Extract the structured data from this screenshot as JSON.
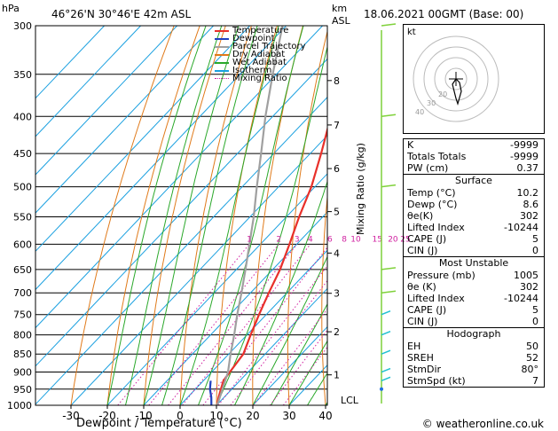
{
  "header": {
    "hpa_label": "hPa",
    "location": "46°26'N  30°46'E  42m  ASL",
    "km_label": "km",
    "asl_label": "ASL",
    "datetime": "18.06.2021  00GMT  (Base: 00)"
  },
  "legend": [
    {
      "label": "Temperature",
      "color": "#e8302a",
      "style": "solid"
    },
    {
      "label": "Dewpoint",
      "color": "#1f3fbf",
      "style": "solid"
    },
    {
      "label": "Parcel Trajectory",
      "color": "#a0a0a0",
      "style": "solid"
    },
    {
      "label": "Dry Adiabat",
      "color": "#e07a1a",
      "style": "solid"
    },
    {
      "label": "Wet Adiabat",
      "color": "#2aa82a",
      "style": "solid"
    },
    {
      "label": "Isotherm",
      "color": "#1aa0e0",
      "style": "solid"
    },
    {
      "label": "Mixing Ratio",
      "color": "#d020a0",
      "style": "dotted"
    }
  ],
  "axes": {
    "xlabel": "Dewpoint  /  Temperature  (°C)",
    "right_label": "Mixing Ratio  (g/kg)",
    "lcl_label": "LCL",
    "footer": "© weatheronline.co.uk"
  },
  "chart_data": {
    "type": "line",
    "x_ticks": [
      -30,
      -20,
      -10,
      0,
      10,
      20,
      30,
      40
    ],
    "pressure_levels": [
      300,
      350,
      400,
      450,
      500,
      550,
      600,
      650,
      700,
      750,
      800,
      850,
      900,
      950,
      1000
    ],
    "km_ticks": [
      {
        "km": 1,
        "p": 908
      },
      {
        "km": 2,
        "p": 792
      },
      {
        "km": 3,
        "p": 701
      },
      {
        "km": 4,
        "p": 617
      },
      {
        "km": 5,
        "p": 541
      },
      {
        "km": 6,
        "p": 472
      },
      {
        "km": 7,
        "p": 411
      },
      {
        "km": 8,
        "p": 357
      }
    ],
    "mixing_ratio_labels": [
      "1",
      "2",
      "3",
      "4",
      "6",
      "8",
      "10",
      "15",
      "20",
      "25"
    ],
    "series": [
      {
        "name": "Temperature",
        "color": "#e8302a",
        "points": [
          [
            1000,
            10.2
          ],
          [
            975,
            8.5
          ],
          [
            950,
            7.0
          ],
          [
            925,
            5.5
          ],
          [
            900,
            5.0
          ],
          [
            850,
            4.0
          ],
          [
            800,
            1.0
          ],
          [
            750,
            -2.0
          ],
          [
            700,
            -5.0
          ],
          [
            650,
            -8.0
          ],
          [
            600,
            -12.0
          ],
          [
            550,
            -16.5
          ],
          [
            500,
            -21.0
          ],
          [
            450,
            -27.0
          ],
          [
            400,
            -34.0
          ],
          [
            350,
            -42.0
          ],
          [
            300,
            -51.0
          ]
        ]
      },
      {
        "name": "Dewpoint",
        "color": "#1f3fbf",
        "points": [
          [
            1000,
            8.6
          ],
          [
            975,
            6.5
          ],
          [
            950,
            4.0
          ],
          [
            925,
            2.0
          ]
        ]
      },
      {
        "name": "Parcel Trajectory",
        "color": "#a0a0a0",
        "points": [
          [
            1000,
            10.2
          ],
          [
            960,
            8.0
          ],
          [
            900,
            4.5
          ],
          [
            850,
            0.5
          ],
          [
            800,
            -3.5
          ],
          [
            750,
            -8.0
          ],
          [
            700,
            -12.5
          ],
          [
            650,
            -17.5
          ],
          [
            600,
            -23.0
          ],
          [
            550,
            -29.0
          ],
          [
            500,
            -36.0
          ],
          [
            450,
            -43.5
          ],
          [
            400,
            -52.0
          ],
          [
            350,
            -61.0
          ],
          [
            300,
            -71.0
          ]
        ]
      }
    ]
  },
  "indices": {
    "rows": [
      {
        "label": "K",
        "value": "-9999"
      },
      {
        "label": "Totals Totals",
        "value": "-9999"
      },
      {
        "label": "PW (cm)",
        "value": "0.37"
      }
    ]
  },
  "surface": {
    "title": "Surface",
    "rows": [
      {
        "label": "Temp (°C)",
        "value": "10.2"
      },
      {
        "label": "Dewp (°C)",
        "value": "8.6"
      },
      {
        "label": "θe(K)",
        "value": "302"
      },
      {
        "label": "Lifted Index",
        "value": "-10244"
      },
      {
        "label": "CAPE (J)",
        "value": "5"
      },
      {
        "label": "CIN (J)",
        "value": "0"
      }
    ]
  },
  "most_unstable": {
    "title": "Most Unstable",
    "rows": [
      {
        "label": "Pressure (mb)",
        "value": "1005"
      },
      {
        "label": "θe (K)",
        "value": "302"
      },
      {
        "label": "Lifted Index",
        "value": "-10244"
      },
      {
        "label": "CAPE (J)",
        "value": "5"
      },
      {
        "label": "CIN (J)",
        "value": "0"
      }
    ]
  },
  "hodograph": {
    "title": "Hodograph",
    "kt_label": "kt",
    "ring_labels": [
      "40",
      "30",
      "20"
    ],
    "rows": [
      {
        "label": "EH",
        "value": "50"
      },
      {
        "label": "SREH",
        "value": "52"
      },
      {
        "label": "StmDir",
        "value": "80°"
      },
      {
        "label": "StmSpd (kt)",
        "value": "7"
      }
    ]
  },
  "colors": {
    "temperature": "#e8302a",
    "dewpoint": "#1f3fbf",
    "parcel": "#a0a0a0",
    "dry_adiabat": "#e07a1a",
    "wet_adiabat": "#2aa82a",
    "isotherm": "#1aa0e0",
    "mixing_ratio": "#d020a0",
    "wind_barb": "#7fd13b"
  }
}
